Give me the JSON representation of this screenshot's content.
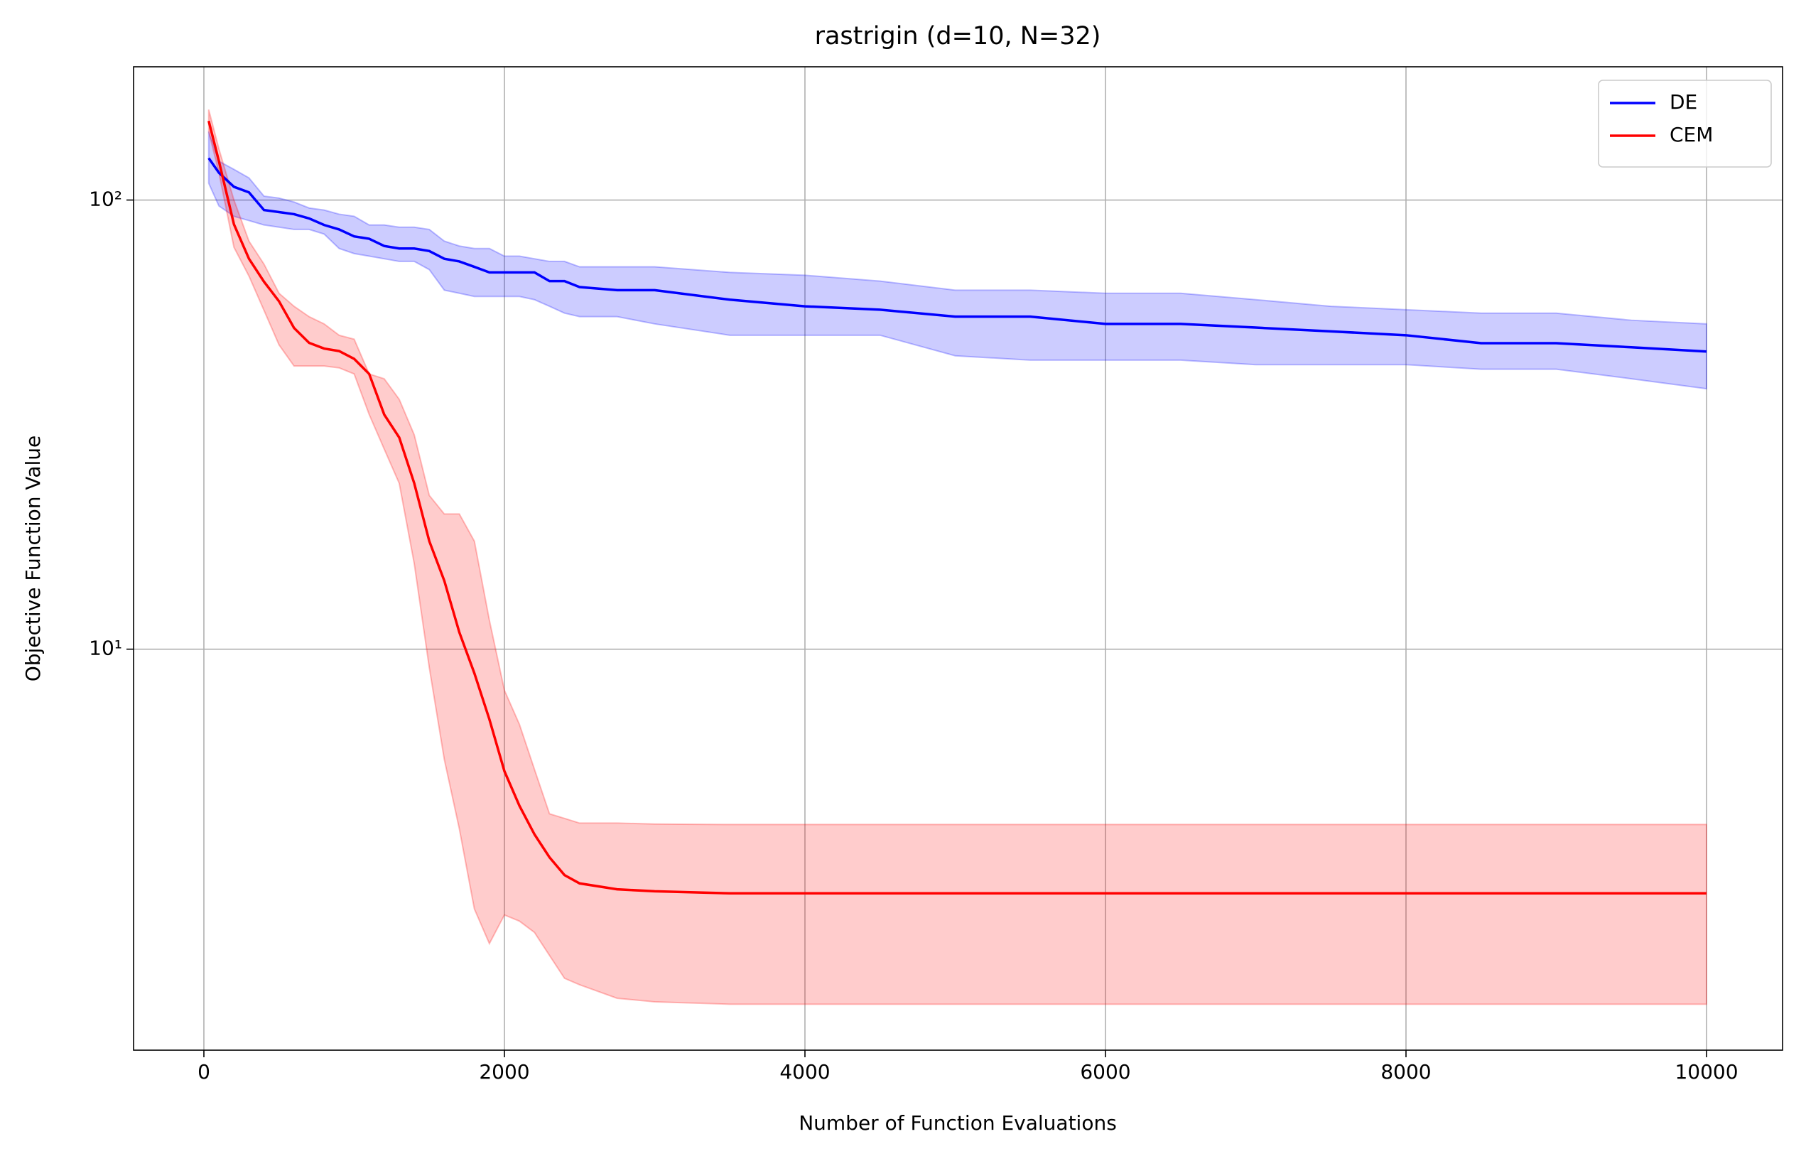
{
  "chart_data": {
    "type": "line",
    "title": "rastrigin (d=10, N=32)",
    "x_label": "Number of Function Evaluations",
    "y_label": "Objective Function Value",
    "x": [
      32,
      100,
      200,
      300,
      400,
      500,
      600,
      700,
      800,
      900,
      1000,
      1100,
      1200,
      1300,
      1400,
      1500,
      1600,
      1700,
      1800,
      1900,
      2000,
      2100,
      2200,
      2300,
      2400,
      2500,
      2750,
      3000,
      3500,
      4000,
      4500,
      5000,
      5500,
      6000,
      6500,
      7000,
      7500,
      8000,
      8500,
      9000,
      9500,
      10000
    ],
    "series": [
      {
        "name": "DE",
        "color": "#0000ff",
        "values": [
          124,
          115,
          107,
          104,
          95,
          94,
          93,
          91,
          88,
          86,
          83,
          82,
          79,
          78,
          78,
          77,
          74,
          73,
          71,
          69,
          69,
          69,
          69,
          66,
          66,
          64,
          63,
          63,
          60,
          58,
          57,
          55,
          55,
          53,
          53,
          52,
          51,
          50,
          48,
          48,
          47,
          46
        ],
        "upper": [
          142,
          122,
          117,
          112,
          102,
          101,
          99,
          96,
          95,
          93,
          92,
          88,
          88,
          87,
          87,
          86,
          81,
          79,
          78,
          78,
          75,
          75,
          74,
          73,
          73,
          71,
          71,
          71,
          69,
          68,
          66,
          63,
          63,
          62,
          62,
          60,
          58,
          57,
          56,
          56,
          54,
          53
        ],
        "lower": [
          109,
          97,
          92,
          90,
          88,
          87,
          86,
          86,
          84,
          78,
          76,
          75,
          74,
          73,
          73,
          70,
          63,
          62,
          61,
          61,
          61,
          61,
          60,
          58,
          56,
          55,
          55,
          53,
          50,
          50,
          50,
          45,
          44,
          44,
          44,
          43,
          43,
          43,
          42,
          42,
          40,
          38
        ]
      },
      {
        "name": "CEM",
        "color": "#ff0000",
        "values": [
          150,
          122,
          88.3,
          74,
          65.8,
          59.5,
          51.9,
          48.1,
          46.7,
          46.1,
          44.3,
          41,
          33.3,
          29.6,
          23.4,
          17.4,
          14.2,
          10.9,
          8.84,
          6.98,
          5.35,
          4.48,
          3.87,
          3.44,
          3.14,
          3.01,
          2.92,
          2.89,
          2.86,
          2.86,
          2.86,
          2.86,
          2.86,
          2.86,
          2.86,
          2.86,
          2.86,
          2.86,
          2.86,
          2.86,
          2.86,
          2.86
        ],
        "upper": [
          159,
          130,
          100,
          81,
          72,
          62,
          58,
          55,
          53,
          50,
          49,
          41,
          40,
          36,
          30,
          22,
          20,
          20,
          17.4,
          11.6,
          8.1,
          6.8,
          5.4,
          4.3,
          4.2,
          4.1,
          4.1,
          4.08,
          4.07,
          4.07,
          4.07,
          4.07,
          4.07,
          4.07,
          4.07,
          4.07,
          4.07,
          4.07,
          4.07,
          4.07,
          4.07,
          4.07
        ],
        "lower": [
          142,
          115,
          78.5,
          67.7,
          56.8,
          47.6,
          42.7,
          42.7,
          42.7,
          42.3,
          41,
          33.3,
          27.9,
          23.4,
          15.5,
          9.1,
          5.68,
          3.98,
          2.64,
          2.21,
          2.56,
          2.48,
          2.34,
          2.08,
          1.85,
          1.79,
          1.67,
          1.64,
          1.62,
          1.62,
          1.62,
          1.62,
          1.62,
          1.62,
          1.62,
          1.62,
          1.62,
          1.62,
          1.62,
          1.62,
          1.62,
          1.62
        ]
      }
    ],
    "xlim": [
      -468,
      10506
    ],
    "xticks": [
      0,
      2000,
      4000,
      6000,
      8000,
      10000
    ],
    "ylim": [
      1.28,
      198
    ],
    "yticks": [
      {
        "value": 10,
        "label": "10¹"
      },
      {
        "value": 100,
        "label": "10²"
      }
    ],
    "y_scale": "log",
    "grid": true,
    "legend": "upper right"
  }
}
